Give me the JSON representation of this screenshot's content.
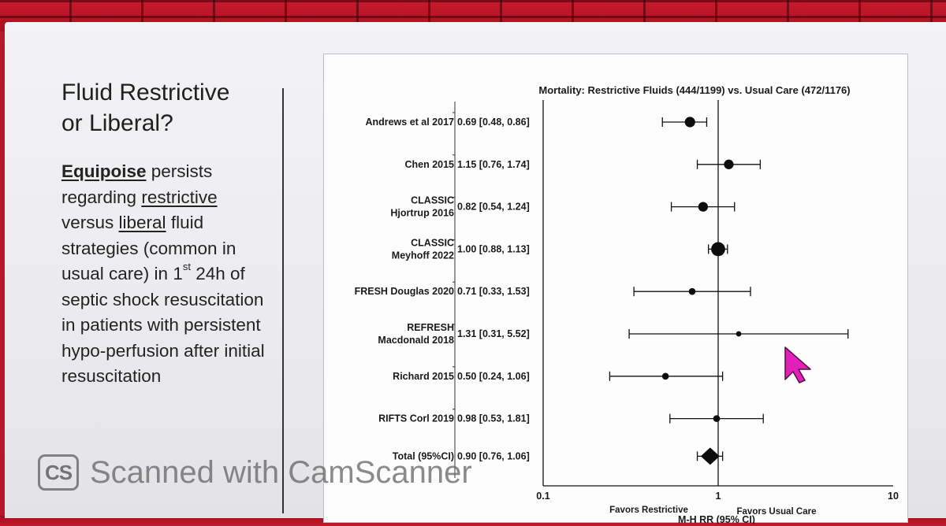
{
  "slide": {
    "title_lines": [
      "Fluid Restrictive",
      "or Liberal?"
    ],
    "body": {
      "t1": "Equipoise",
      "t2": " persists regarding ",
      "t3": "restrictive",
      "t4": " versus ",
      "t5": "liberal",
      "t6": " fluid strategies (common in usual care) in 1",
      "sup": "st",
      "t7": " 24h of septic shock resuscitation in patients with persistent hypo-perfusion after initial resuscitation"
    }
  },
  "watermark": {
    "logo": "CS",
    "text": "Scanned with CamScanner"
  },
  "cursor": {
    "icon": "mouse-pointer-icon",
    "color": "#e21fb8"
  },
  "chart_data": {
    "type": "forest",
    "title": "Mortality: Restrictive Fluids (444/1199) vs. Usual Care (472/1176)",
    "xlabel": "M-H RR (95% CI)",
    "x_scale": "log",
    "xlim": [
      0.1,
      10
    ],
    "x_ticks": [
      "0.1",
      "1",
      "10"
    ],
    "reference_line": 1,
    "favors_left": "Favors Restrictive",
    "favors_right": "Favors Usual Care",
    "studies": [
      {
        "name_lines": [
          "Andrews et al 2017"
        ],
        "ci_text": "0.69 [0.48, 0.86]",
        "rr": 0.69,
        "lo": 0.48,
        "hi": 0.86,
        "weight": 2
      },
      {
        "name_lines": [
          "Chen 2015"
        ],
        "ci_text": "1.15 [0.76, 1.74]",
        "rr": 1.15,
        "lo": 0.76,
        "hi": 1.74,
        "weight": 1.8
      },
      {
        "name_lines": [
          "CLASSIC",
          "Hjortrup 2016"
        ],
        "ci_text": "0.82 [0.54, 1.24]",
        "rr": 0.82,
        "lo": 0.54,
        "hi": 1.24,
        "weight": 1.8
      },
      {
        "name_lines": [
          "CLASSIC",
          "Meyhoff 2022"
        ],
        "ci_text": "1.00 [0.88, 1.13]",
        "rr": 1.0,
        "lo": 0.88,
        "hi": 1.13,
        "weight": 3
      },
      {
        "name_lines": [
          "FRESH Douglas 2020"
        ],
        "ci_text": "0.71 [0.33, 1.53]",
        "rr": 0.71,
        "lo": 0.33,
        "hi": 1.53,
        "weight": 1
      },
      {
        "name_lines": [
          "REFRESH",
          "Macdonald 2018"
        ],
        "ci_text": "1.31 [0.31, 5.52]",
        "rr": 1.31,
        "lo": 0.31,
        "hi": 5.52,
        "weight": 0.6
      },
      {
        "name_lines": [
          "Richard 2015"
        ],
        "ci_text": "0.50 [0.24, 1.06]",
        "rr": 0.5,
        "lo": 0.24,
        "hi": 1.06,
        "weight": 1
      },
      {
        "name_lines": [
          "RIFTS Corl 2019"
        ],
        "ci_text": "0.98 [0.53, 1.81]",
        "rr": 0.98,
        "lo": 0.53,
        "hi": 1.81,
        "weight": 1
      }
    ],
    "total": {
      "name": "Total (95%CI)",
      "ci_text": "0.90 [0.76, 1.06]",
      "rr": 0.9,
      "lo": 0.76,
      "hi": 1.06
    }
  }
}
